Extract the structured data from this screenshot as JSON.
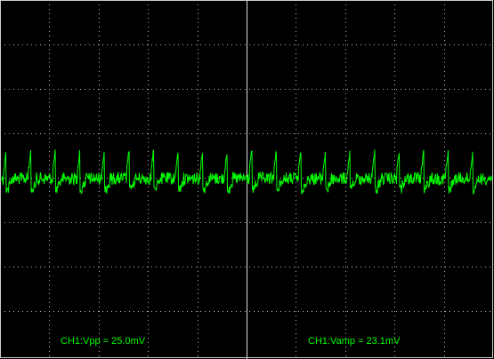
{
  "measurements": [
    "CH1:Vpp = 25.0mV",
    "CH1:Vamp = 23.1mV"
  ]
}
